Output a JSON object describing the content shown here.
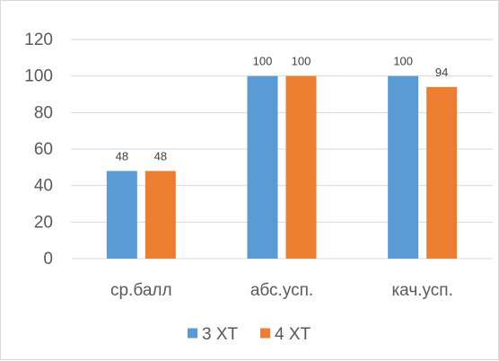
{
  "chart_data": {
    "type": "bar",
    "categories": [
      "ср.балл",
      "абс.усп.",
      "кач.усп."
    ],
    "series": [
      {
        "name": "3 ХТ",
        "values": [
          48,
          100,
          100
        ],
        "color": "#5b9bd5"
      },
      {
        "name": "4 ХТ",
        "values": [
          48,
          100,
          94
        ],
        "color": "#ed7d31"
      }
    ],
    "ylim": [
      0,
      120
    ],
    "yticks": [
      0,
      20,
      40,
      60,
      80,
      100,
      120
    ],
    "grid": true,
    "data_labels": true,
    "legend_position": "bottom",
    "title": "",
    "xlabel": "",
    "ylabel": ""
  }
}
